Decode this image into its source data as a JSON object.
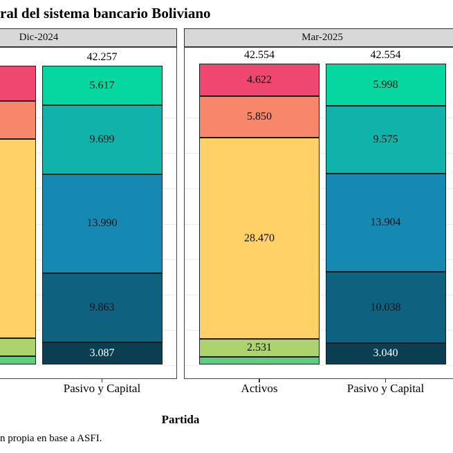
{
  "title_visible": "ral del sistema bancario Boliviano",
  "axis": {
    "x_title": "Partida"
  },
  "caption_visible": "n propia en base a ASFI.",
  "palette": {
    "pink": "#EF476F",
    "salmon": "#F7876B",
    "yellow": "#FFD166",
    "yellow_green": "#ADD36E",
    "green": "#5FCD7F",
    "emerald": "#06D6A0",
    "teal": "#10B2A9",
    "blue": "#1689B2",
    "dark_blue": "#0F6180",
    "navy": "#0A3E50"
  },
  "chart_data": {
    "type": "bar",
    "stacked": true,
    "xlabel": "Partida",
    "ylabel": "",
    "ylim": [
      0,
      44900
    ],
    "gridline_step": 5000,
    "grid": "on",
    "legend": "none",
    "x_categories": [
      "Activos",
      "Pasivo y Capital"
    ],
    "facets": [
      {
        "label": "Dic-2024",
        "bars": [
          {
            "category": "Activos",
            "clipped_offscreen": true,
            "values_estimated": true,
            "total_label": null,
            "segments": [
              {
                "value": 4990,
                "label": null,
                "color": "#EF476F"
              },
              {
                "value": 5380,
                "label": null,
                "color": "#F7876B"
              },
              {
                "value": 28170,
                "label": null,
                "color": "#FFD166"
              },
              {
                "value": 2540,
                "label": null,
                "color": "#ADD36E"
              },
              {
                "value": 1177,
                "label": null,
                "color": "#5FCD7F"
              }
            ]
          },
          {
            "category": "Pasivo y Capital",
            "clipped_offscreen": false,
            "values_estimated": false,
            "total_label": "42.257",
            "segments": [
              {
                "value": 5617,
                "label": "5.617",
                "color": "#06D6A0"
              },
              {
                "value": 9699,
                "label": "9.699",
                "color": "#10B2A9"
              },
              {
                "value": 13990,
                "label": "13.990",
                "color": "#1689B2"
              },
              {
                "value": 9863,
                "label": "9.863",
                "color": "#0F6180"
              },
              {
                "value": 3087,
                "label": "3.087",
                "color": "#0A3E50"
              }
            ]
          }
        ]
      },
      {
        "label": "Mar-2025",
        "bars": [
          {
            "category": "Activos",
            "clipped_offscreen": false,
            "values_estimated": false,
            "total_label": "42.554",
            "segments": [
              {
                "value": 4622,
                "label": "4.622",
                "color": "#EF476F"
              },
              {
                "value": 5850,
                "label": "5.850",
                "color": "#F7876B"
              },
              {
                "value": 28470,
                "label": "28.470",
                "color": "#FFD166"
              },
              {
                "value": 2531,
                "label": "2.531",
                "color": "#ADD36E"
              },
              {
                "value": 1081,
                "label": null,
                "color": "#5FCD7F"
              }
            ]
          },
          {
            "category": "Pasivo y Capital",
            "clipped_offscreen": false,
            "values_estimated": false,
            "total_label": "42.554",
            "segments": [
              {
                "value": 5998,
                "label": "5.998",
                "color": "#06D6A0"
              },
              {
                "value": 9575,
                "label": "9.575",
                "color": "#10B2A9"
              },
              {
                "value": 13904,
                "label": "13.904",
                "color": "#1689B2"
              },
              {
                "value": 10038,
                "label": "10.038",
                "color": "#0F6180"
              },
              {
                "value": 3040,
                "label": "3.040",
                "color": "#0A3E50"
              }
            ]
          }
        ]
      }
    ]
  }
}
